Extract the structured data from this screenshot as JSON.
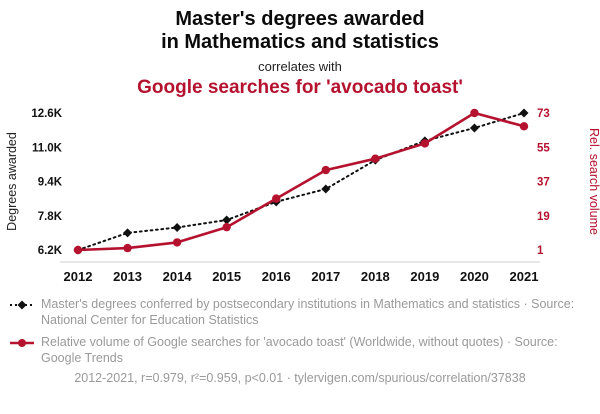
{
  "header": {
    "title_line1": "Master's degrees awarded",
    "title_line2": "in Mathematics and statistics",
    "connector": "correlates with",
    "subtitle": "Google searches for 'avocado toast'"
  },
  "colors": {
    "accent_red": "#b5122f",
    "series_black": "#111111",
    "muted_text": "#9a9a9a"
  },
  "chart_data": {
    "type": "line",
    "grid": false,
    "legend_position": "bottom",
    "categories": [
      "2012",
      "2013",
      "2014",
      "2015",
      "2016",
      "2017",
      "2018",
      "2019",
      "2020",
      "2021"
    ],
    "left_axis": {
      "label": "Degrees awarded",
      "min": 6200,
      "max": 12600,
      "tick_values": [
        6200,
        7800,
        9400,
        11000,
        12600
      ],
      "tick_labels": [
        "6.2K",
        "7.8K",
        "9.4K",
        "11.0K",
        "12.6K"
      ]
    },
    "right_axis": {
      "label": "Rel. search volume",
      "min": 1,
      "max": 73,
      "tick_values": [
        1,
        19,
        37,
        55,
        73
      ],
      "tick_labels": [
        "1",
        "19",
        "37",
        "55",
        "73"
      ]
    },
    "series": [
      {
        "name": "Master's degrees awarded in Mathematics and statistics",
        "axis": "left",
        "color": "#111111",
        "style": "dashed",
        "marker": "diamond",
        "values": [
          6200,
          7000,
          7250,
          7600,
          8450,
          9050,
          10400,
          11300,
          11900,
          12600
        ]
      },
      {
        "name": "Google searches for 'avocado toast'",
        "axis": "right",
        "color": "#b5122f",
        "style": "solid",
        "marker": "circle",
        "values": [
          1,
          2,
          5,
          13,
          28,
          43,
          49,
          57,
          73,
          66
        ]
      }
    ]
  },
  "legend": [
    {
      "marker": "diamond-dashed",
      "text": "Master's degrees conferred by postsecondary institutions in Mathematics and statistics · Source: National Center for Education Statistics"
    },
    {
      "marker": "circle-solid",
      "text": "Relative volume of Google searches for 'avocado toast' (Worldwide, without quotes) · Source: Google Trends"
    }
  ],
  "footer": {
    "text": "2012-2021, r=0.979, r²=0.959, p<0.01 · tylervigen.com/spurious/correlation/37838"
  }
}
